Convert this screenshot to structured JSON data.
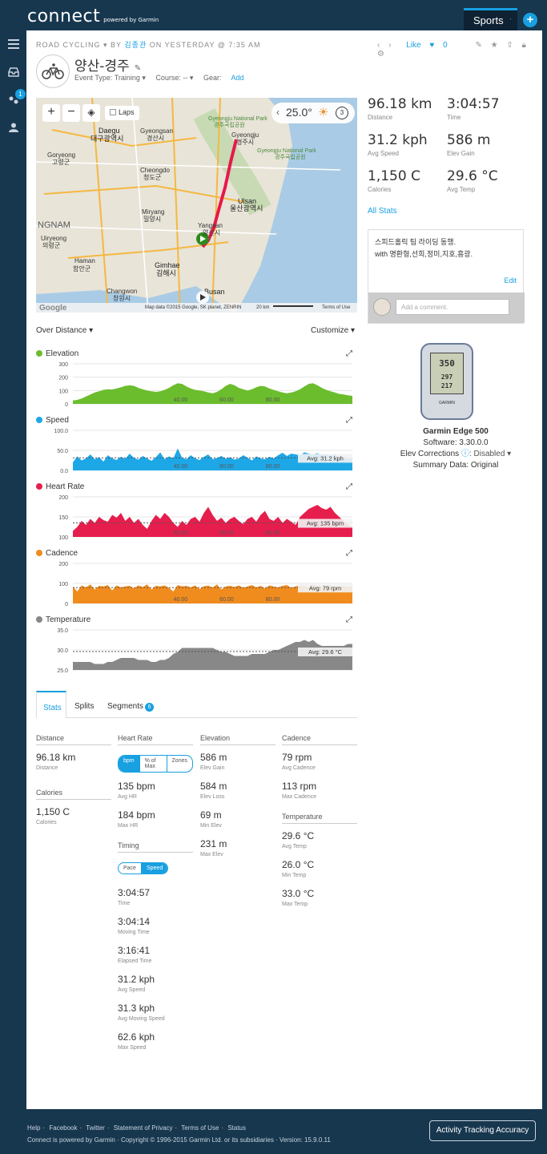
{
  "topbar": {
    "logo": "connect",
    "logo_sub": "powered by Garmin",
    "sports_tab": "Sports",
    "sports_sep": "·",
    "plus": "+"
  },
  "sidebar": {
    "badge": "1",
    "items": [
      "menu-icon",
      "inbox-icon",
      "connections-icon",
      "profile-icon"
    ]
  },
  "activity": {
    "crumb_type": "ROAD CYCLING",
    "crumb_by": "BY",
    "crumb_user": "김종관",
    "crumb_when": "ON YESTERDAY @ 7:35 AM",
    "title": "양산-경주",
    "event_type": "Event Type: Training ▾",
    "course": "Course: -- ▾",
    "gear_label": "Gear:",
    "gear_add": "Add",
    "like_label": "Like",
    "like_count": "0"
  },
  "map": {
    "laps_label": "Laps",
    "temp": "25.0°",
    "badge": "3",
    "attribution": "Map data ©2015 Google, SK planet, ZENRIN",
    "scale": "20 km",
    "terms": "Terms of Use",
    "google": "Google",
    "places": [
      "Gyeongju National Park",
      "경주국립공원",
      "Daegu",
      "대구광역시",
      "Gyeongsan",
      "경산시",
      "Gyeongju",
      "경주시",
      "Gyeongju National Park",
      "경주국립공원",
      "Goryeong",
      "고령군",
      "Cheongdo",
      "청도군",
      "Ulsan",
      "울산광역시",
      "NGNAM",
      "Miryang",
      "밀양시",
      "Yangsan",
      "양산시",
      "Uiryeong",
      "의령군",
      "Haman",
      "함안군",
      "Gimhae",
      "김해시",
      "Changwon",
      "창원시",
      "Busan"
    ]
  },
  "charts_header": {
    "over_distance": "Over Distance ▾",
    "customize": "Customize ▾"
  },
  "chart_data": [
    {
      "type": "area",
      "title": "Elevation",
      "color": "#6bbd2e",
      "yticks": [
        "300",
        "200",
        "100",
        "0"
      ],
      "xticks": [
        "40.00",
        "60.00",
        "80.00"
      ],
      "ylim": [
        0,
        300
      ],
      "values": [
        25,
        30,
        40,
        55,
        70,
        85,
        95,
        105,
        110,
        108,
        115,
        125,
        135,
        140,
        135,
        120,
        110,
        100,
        95,
        90,
        95,
        105,
        120,
        140,
        155,
        150,
        130,
        115,
        105,
        100,
        95,
        85,
        80,
        90,
        110,
        135,
        150,
        140,
        120,
        110,
        100,
        110,
        125,
        135,
        130,
        115,
        105,
        95,
        85,
        80,
        85,
        95,
        110,
        130,
        150,
        155,
        140,
        120,
        105,
        95,
        85,
        75,
        70,
        65,
        60
      ]
    },
    {
      "type": "area",
      "title": "Speed",
      "color": "#1ea7e6",
      "yticks": [
        "100.0",
        "50.0",
        "0.0"
      ],
      "xticks": [
        "40.00",
        "60.00",
        "80.00"
      ],
      "ylim": [
        0,
        100
      ],
      "avg_label": "Avg: 31.2 kph",
      "avg": 31.2,
      "values": [
        20,
        35,
        25,
        30,
        40,
        28,
        33,
        22,
        38,
        30,
        26,
        34,
        29,
        42,
        31,
        27,
        36,
        30,
        24,
        33,
        45,
        28,
        35,
        30,
        55,
        32,
        28,
        38,
        30,
        26,
        34,
        40,
        28,
        31,
        36,
        29,
        33,
        27,
        30,
        38,
        32,
        25,
        35,
        30,
        28,
        34,
        30,
        38,
        44,
        36,
        42,
        40,
        38,
        45,
        42,
        40,
        43,
        38,
        41,
        36,
        40,
        30,
        34,
        28,
        32
      ]
    },
    {
      "type": "area",
      "title": "Heart Rate",
      "color": "#e61e4d",
      "yticks": [
        "200",
        "150",
        "100"
      ],
      "xticks": [
        "40.00",
        "60.00",
        "80.00"
      ],
      "ylim": [
        100,
        200
      ],
      "avg_label": "Avg: 135 bpm",
      "avg": 135,
      "values": [
        115,
        125,
        140,
        130,
        145,
        135,
        150,
        142,
        138,
        155,
        148,
        160,
        140,
        150,
        135,
        145,
        130,
        120,
        140,
        155,
        145,
        160,
        150,
        135,
        125,
        140,
        130,
        145,
        150,
        138,
        160,
        175,
        155,
        140,
        148,
        135,
        145,
        150,
        140,
        132,
        145,
        150,
        138,
        155,
        165,
        145,
        140,
        150,
        135,
        145,
        138,
        130,
        150,
        160,
        170,
        175,
        180,
        172,
        168,
        175,
        160,
        150,
        140,
        130,
        125
      ]
    },
    {
      "type": "area",
      "title": "Cadence",
      "color": "#f08c1e",
      "yticks": [
        "200",
        "100",
        "0"
      ],
      "xticks": [
        "40.00",
        "60.00",
        "80.00"
      ],
      "ylim": [
        0,
        200
      ],
      "avg_label": "Avg: 79 rpm",
      "avg": 79,
      "values": [
        85,
        60,
        90,
        80,
        95,
        70,
        88,
        85,
        92,
        65,
        90,
        80,
        85,
        88,
        75,
        90,
        82,
        95,
        70,
        88,
        85,
        90,
        78,
        60,
        92,
        85,
        88,
        80,
        90,
        72,
        86,
        89,
        80,
        95,
        70,
        85,
        88,
        82,
        90,
        78,
        85,
        92,
        80,
        88,
        75,
        90,
        85,
        80,
        88,
        92,
        78,
        85,
        90,
        88,
        80,
        95,
        85,
        82,
        88,
        90,
        80,
        85,
        88,
        82,
        86
      ]
    },
    {
      "type": "area",
      "title": "Temperature",
      "color": "#888888",
      "yticks": [
        "35.0",
        "30.0",
        "25.0"
      ],
      "xticks": [],
      "ylim": [
        25,
        35
      ],
      "avg_label": "Avg: 29.6 °C",
      "avg": 29.6,
      "values": [
        27,
        27,
        27,
        27,
        27,
        26.5,
        26.5,
        26.5,
        27,
        27,
        27.5,
        28,
        28,
        28,
        28,
        27.5,
        27.5,
        27.5,
        27,
        27,
        27.5,
        27.5,
        28,
        29,
        29.5,
        30.5,
        30.5,
        30.5,
        30.5,
        30.5,
        30.5,
        30.5,
        30.5,
        30,
        29.5,
        29.5,
        29,
        28.5,
        28.5,
        28.5,
        28.5,
        29,
        29,
        29,
        29,
        29.5,
        30,
        30,
        30.5,
        31,
        31.5,
        32,
        32,
        32.5,
        32,
        32.5,
        31.5,
        31,
        31,
        31,
        31,
        31,
        31,
        31.5,
        31.5
      ]
    }
  ],
  "summary": {
    "distance": {
      "v": "96.18 km",
      "l": "Distance"
    },
    "time": {
      "v": "3:04:57",
      "l": "Time"
    },
    "avg_speed": {
      "v": "31.2 kph",
      "l": "Avg Speed"
    },
    "elev_gain": {
      "v": "586 m",
      "l": "Elev Gain"
    },
    "calories": {
      "v": "1,150 C",
      "l": "Calories"
    },
    "avg_temp": {
      "v": "29.6 °C",
      "l": "Avg Temp"
    },
    "all_stats": "All Stats"
  },
  "comment": {
    "text1": "스피드홀릭 팀 라이딩 동행.",
    "text2": "with 명환형,선희,정미,지호,흥광.",
    "edit": "Edit",
    "placeholder": "Add a comment."
  },
  "device": {
    "name": "Garmin Edge 500",
    "software": "Software: 3.30.0.0",
    "elev_corr": "Elev Corrections",
    "elev_corr_value": ": Disabled ▾",
    "summary_data": "Summary Data: Original",
    "screen_top": "350",
    "screen_mid": "297",
    "screen_bot": "217",
    "brand": "GARMIN"
  },
  "tabs": {
    "stats": "Stats",
    "splits": "Splits",
    "segments": "Segments",
    "segments_count": "6"
  },
  "detail": {
    "distance_hd": "Distance",
    "distance": {
      "v": "96.18 km",
      "l": "Distance"
    },
    "calories_hd": "Calories",
    "calories": {
      "v": "1,150 C",
      "l": "Calories"
    },
    "hr_hd": "Heart Rate",
    "hr_seg": [
      "bpm",
      "% of Max",
      "Zones"
    ],
    "avg_hr": {
      "v": "135 bpm",
      "l": "Avg HR"
    },
    "max_hr": {
      "v": "184 bpm",
      "l": "Max HR"
    },
    "timing_hd": "Timing",
    "timing_seg": [
      "Pace",
      "Speed"
    ],
    "time": {
      "v": "3:04:57",
      "l": "Time"
    },
    "moving_time": {
      "v": "3:04:14",
      "l": "Moving Time"
    },
    "elapsed_time": {
      "v": "3:16:41",
      "l": "Elapsed Time"
    },
    "avg_speed": {
      "v": "31.2 kph",
      "l": "Avg Speed"
    },
    "avg_moving_speed": {
      "v": "31.3 kph",
      "l": "Avg Moving Speed"
    },
    "max_speed": {
      "v": "62.6 kph",
      "l": "Max Speed"
    },
    "elev_hd": "Elevation",
    "elev_gain": {
      "v": "586 m",
      "l": "Elev Gain"
    },
    "elev_loss": {
      "v": "584 m",
      "l": "Elev Loss"
    },
    "min_elev": {
      "v": "69 m",
      "l": "Min Elev"
    },
    "max_elev": {
      "v": "231 m",
      "l": "Max Elev"
    },
    "cadence_hd": "Cadence",
    "avg_cad": {
      "v": "79 rpm",
      "l": "Avg Cadence"
    },
    "max_cad": {
      "v": "113 rpm",
      "l": "Max Cadence"
    },
    "temp_hd": "Temperature",
    "avg_temp": {
      "v": "29.6 °C",
      "l": "Avg Temp"
    },
    "min_temp": {
      "v": "26.0 °C",
      "l": "Min Temp"
    },
    "max_temp": {
      "v": "33.0 °C",
      "l": "Max Temp"
    }
  },
  "footer": {
    "links": [
      "Help",
      "Facebook",
      "Twitter",
      "Statement of Privacy",
      "Terms of Use",
      "Status"
    ],
    "copy": "Connect is powered by Garmin · Copyright © 1996-2015 Garmin Ltd. or its subsidiaries · Version: 15.9.0.11",
    "accuracy": "Activity Tracking Accuracy"
  }
}
